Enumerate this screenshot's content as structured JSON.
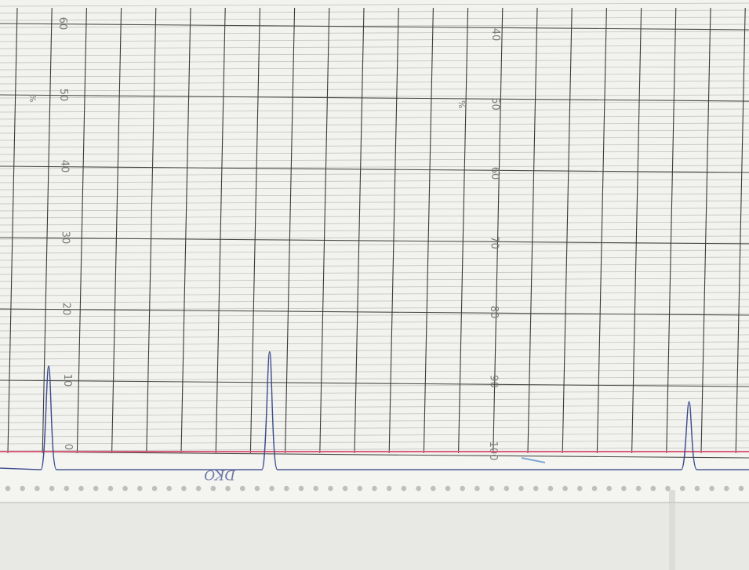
{
  "chart_data": {
    "type": "line",
    "title": "",
    "xlabel": "",
    "ylabel": "",
    "y_left_scale": {
      "ticks": [
        "0",
        "10",
        "20",
        "30",
        "40",
        "50",
        "60"
      ],
      "range": [
        0,
        60
      ],
      "unit_mark": "%"
    },
    "y_right_scale": {
      "ticks": [
        "40",
        "50",
        "60",
        "70",
        "80",
        "90",
        "100"
      ],
      "range": [
        40,
        100
      ],
      "unit_mark": "%",
      "reversed": true
    },
    "grid": true,
    "legend": "none",
    "series": [
      {
        "name": "",
        "color": "#3a4a8c",
        "peaks": [
          {
            "x_fraction": 0.065,
            "value": 12
          },
          {
            "x_fraction": 0.36,
            "value": 14
          },
          {
            "x_fraction": 0.92,
            "value": 7
          }
        ],
        "baseline_value": -1
      }
    ],
    "baseline_color": "#d9607a",
    "handwritten_note": "DKO"
  },
  "colors": {
    "paper": "#f2f2ef",
    "grid_major": "#3f3f3f",
    "grid_minor": "#b9b9b6",
    "trace": "#3a4a8c",
    "baseline": "#d9607a",
    "backdrop": "#e9e9e6"
  }
}
